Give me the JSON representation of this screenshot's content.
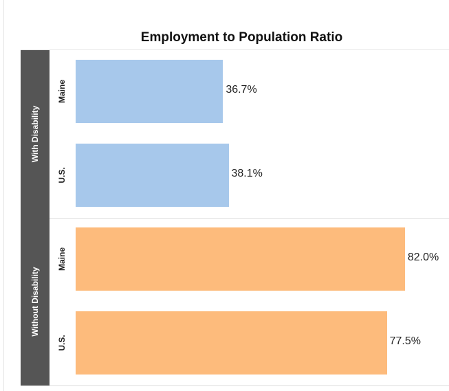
{
  "chart_data": {
    "type": "bar",
    "orientation": "horizontal",
    "title": "Employment to Population Ratio",
    "groups": [
      {
        "name": "With Disability",
        "color": "#a7c8eb",
        "rows": [
          {
            "label": "Maine",
            "value": 36.7,
            "value_label": "36.7%"
          },
          {
            "label": "U.S.",
            "value": 38.1,
            "value_label": "38.1%"
          }
        ]
      },
      {
        "name": "Without Disability",
        "color": "#fdbb7c",
        "rows": [
          {
            "label": "Maine",
            "value": 82.0,
            "value_label": "82.0%"
          },
          {
            "label": "U.S.",
            "value": 77.5,
            "value_label": "77.5%"
          }
        ]
      }
    ],
    "xlim": [
      0,
      100
    ],
    "grid": false,
    "legend": "none"
  }
}
